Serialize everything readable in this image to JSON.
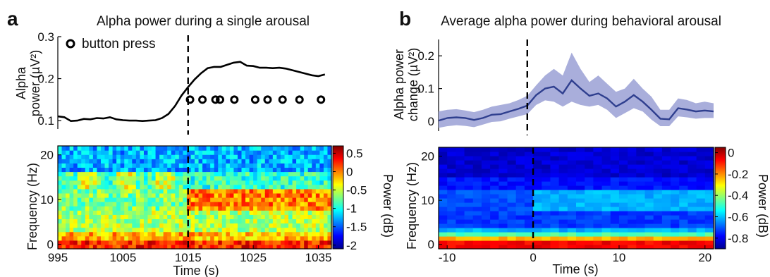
{
  "chart_data": [
    {
      "panel_label": "a",
      "type": "line",
      "title": "Alpha power during a single arousal",
      "ylabel": "Alpha power (µV²)",
      "xlim": [
        995,
        1037
      ],
      "ylim": [
        0.08,
        0.3
      ],
      "y_ticks": [
        "0.1",
        "0.2",
        "0.3"
      ],
      "legend": {
        "label": "button press",
        "placement": "top-left"
      },
      "event_x": 1015,
      "series": [
        {
          "x": [
            995,
            996,
            997,
            998,
            999,
            1000,
            1001,
            1002,
            1003,
            1004,
            1005,
            1006,
            1007,
            1008,
            1009,
            1010,
            1011,
            1012,
            1013,
            1014,
            1015,
            1016,
            1017,
            1018,
            1019,
            1020,
            1021,
            1022,
            1023,
            1024,
            1025,
            1026,
            1027,
            1028,
            1029,
            1030,
            1031,
            1032,
            1033,
            1034,
            1035,
            1036
          ],
          "y": [
            0.11,
            0.108,
            0.099,
            0.1,
            0.104,
            0.103,
            0.106,
            0.105,
            0.108,
            0.103,
            0.101,
            0.1,
            0.1,
            0.099,
            0.1,
            0.101,
            0.106,
            0.116,
            0.135,
            0.16,
            0.18,
            0.198,
            0.213,
            0.225,
            0.228,
            0.228,
            0.233,
            0.238,
            0.24,
            0.231,
            0.23,
            0.226,
            0.226,
            0.225,
            0.226,
            0.224,
            0.22,
            0.216,
            0.212,
            0.208,
            0.206,
            0.21
          ]
        }
      ],
      "markers": {
        "label": "button press",
        "x": [
          1015.3,
          1017.2,
          1019.2,
          1019.9,
          1022.1,
          1025.3,
          1027.2,
          1029.5,
          1032.1,
          1035.4
        ],
        "y": 0.15
      }
    },
    {
      "panel_label": "a",
      "type": "heatmap",
      "xlabel": "Time (s)",
      "ylabel": "Frequency (Hz)",
      "xlim": [
        995,
        1037
      ],
      "ylim": [
        -1,
        22
      ],
      "x_ticks": [
        "995",
        "1005",
        "1015",
        "1025",
        "1035"
      ],
      "y_ticks": [
        "0",
        "10",
        "20"
      ],
      "colorbar": {
        "label": "Power (dB)",
        "range": [
          -2.1,
          0.7
        ],
        "ticks": [
          "0.5",
          "0",
          "-0.5",
          "-1",
          "-1.5",
          "-2"
        ]
      },
      "event_x": 1015
    },
    {
      "panel_label": "b",
      "type": "area",
      "title": "Average alpha power during behavioral arousal",
      "ylabel": "Alpha power change (µV²)",
      "xlim": [
        -10,
        21
      ],
      "ylim": [
        -0.03,
        0.25
      ],
      "y_ticks": [
        "0",
        "0.1",
        "0.2"
      ],
      "event_x": 0,
      "series": [
        {
          "x": [
            -10,
            -9,
            -8,
            -7,
            -6,
            -5,
            -4,
            -3,
            -2,
            -1,
            0,
            1,
            2,
            3,
            4,
            5,
            6,
            7,
            8,
            9,
            10,
            11,
            12,
            13,
            14,
            15,
            16,
            17,
            18,
            19,
            20,
            21
          ],
          "y": [
            0.002,
            0.01,
            0.012,
            0.01,
            0.004,
            0.01,
            0.02,
            0.022,
            0.03,
            0.038,
            0.048,
            0.08,
            0.1,
            0.106,
            0.085,
            0.125,
            0.1,
            0.078,
            0.085,
            0.07,
            0.045,
            0.06,
            0.08,
            0.06,
            0.035,
            0.008,
            0.006,
            0.04,
            0.036,
            0.03,
            0.033,
            0.03
          ],
          "lower": [
            -0.02,
            -0.015,
            -0.012,
            -0.014,
            -0.018,
            -0.01,
            -0.002,
            0.0,
            0.008,
            0.015,
            0.022,
            0.05,
            0.064,
            0.06,
            0.045,
            0.06,
            0.05,
            0.045,
            0.05,
            0.035,
            0.01,
            0.025,
            0.04,
            0.03,
            0.005,
            -0.015,
            -0.015,
            0.015,
            0.012,
            0.008,
            0.01,
            0.01
          ],
          "upper": [
            0.03,
            0.035,
            0.037,
            0.033,
            0.028,
            0.035,
            0.045,
            0.05,
            0.055,
            0.065,
            0.078,
            0.11,
            0.14,
            0.16,
            0.14,
            0.21,
            0.16,
            0.12,
            0.14,
            0.115,
            0.09,
            0.1,
            0.13,
            0.1,
            0.075,
            0.035,
            0.035,
            0.07,
            0.065,
            0.055,
            0.06,
            0.055
          ]
        }
      ]
    },
    {
      "panel_label": "b",
      "type": "heatmap",
      "xlabel": "Time (s)",
      "ylabel": "Frequency (Hz)",
      "xlim": [
        -11,
        21
      ],
      "ylim": [
        -1,
        22
      ],
      "x_ticks": [
        "-10",
        "0",
        "10",
        "20"
      ],
      "y_ticks": [
        "0",
        "10",
        "20"
      ],
      "colorbar": {
        "label": "Power (dB)",
        "range": [
          -0.9,
          0.05
        ],
        "ticks": [
          "0",
          "-0.2",
          "-0.4",
          "-0.6",
          "-0.8"
        ]
      },
      "event_x": 0
    }
  ],
  "colors": {
    "line": "#000000",
    "mean_line": "#2f3f8f",
    "band": "#a9aedb",
    "marker": "#000000"
  }
}
